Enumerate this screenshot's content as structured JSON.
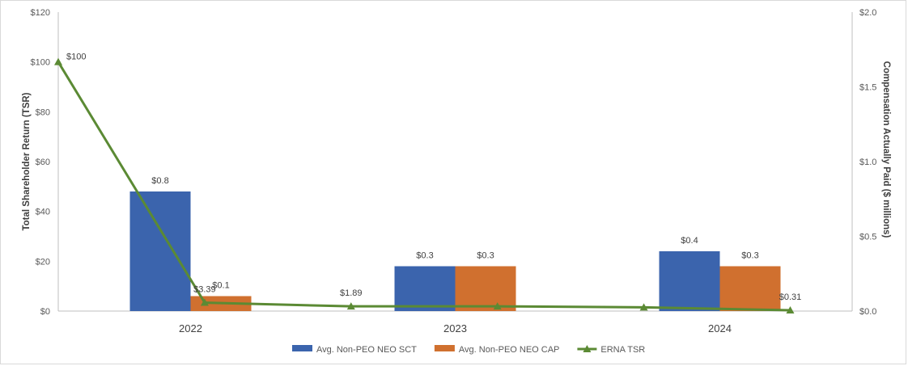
{
  "chart_data": {
    "type": "bar",
    "categories": [
      "2022",
      "2023",
      "2024"
    ],
    "series": [
      {
        "name": "Avg. Non-PEO NEO SCT",
        "kind": "bar",
        "axis": "right",
        "color": "#3b64ad",
        "values": [
          0.8,
          0.3,
          0.4
        ],
        "labels": [
          "$0.8",
          "$0.3",
          "$0.4"
        ]
      },
      {
        "name": "Avg. Non-PEO NEO CAP",
        "kind": "bar",
        "axis": "right",
        "color": "#d0702f",
        "values": [
          0.1,
          0.3,
          0.3
        ],
        "labels": [
          "$0.1",
          "$0.3",
          "$0.3"
        ]
      },
      {
        "name": "ERNA TSR",
        "kind": "line",
        "axis": "left",
        "color": "#5b8a34",
        "marker": "triangle",
        "x": [
          0,
          1,
          2,
          3,
          4,
          5
        ],
        "values": [
          100,
          3.39,
          1.89,
          1.89,
          1.5,
          0.31
        ],
        "labels": [
          "$100",
          "$3.39",
          "$1.89",
          "",
          "",
          "$0.31"
        ]
      }
    ],
    "ylabel_left": "Total Shareholder Return (TSR)",
    "ylabel_right": "Compensation Actually Paid ($ millions)",
    "ylim_left": [
      0,
      120
    ],
    "ylim_right": [
      0,
      2.0
    ],
    "yticks_left": [
      "$0",
      "$20",
      "$40",
      "$60",
      "$80",
      "$100",
      "$120"
    ],
    "yticks_right": [
      "$0.0",
      "$0.5",
      "$1.0",
      "$1.5",
      "$2.0"
    ],
    "grid": false,
    "legend_position": "bottom"
  }
}
